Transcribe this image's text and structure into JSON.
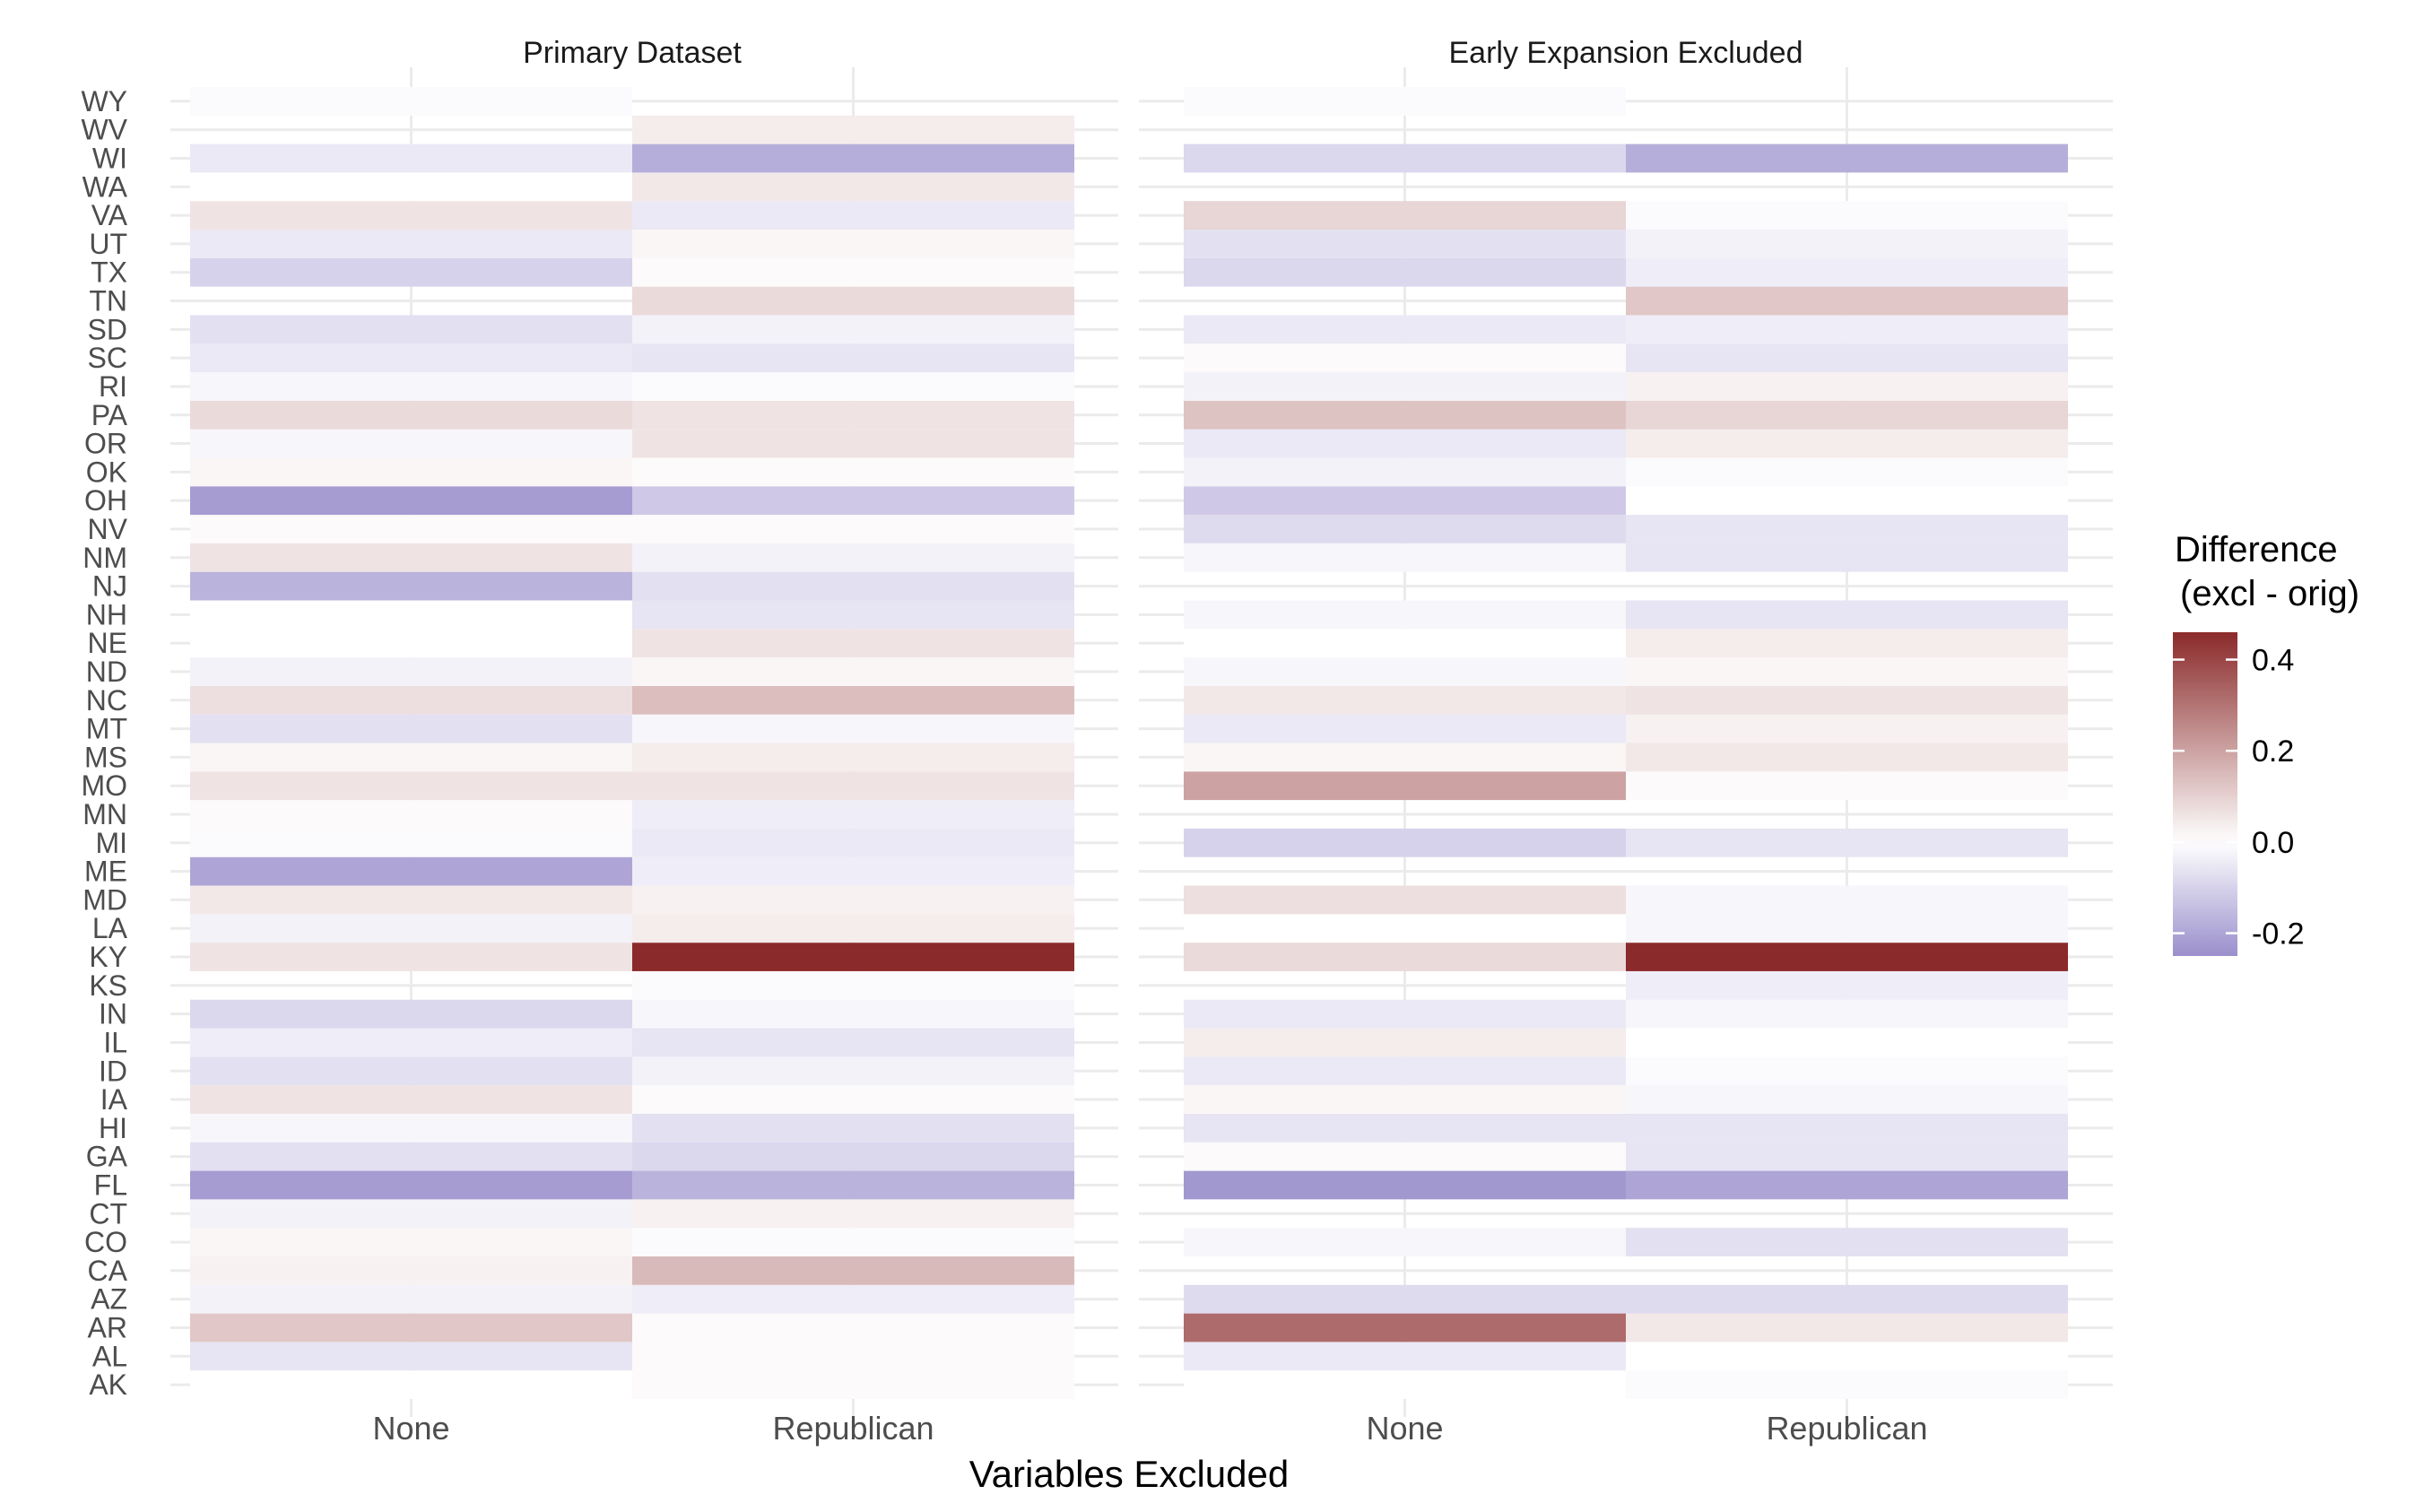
{
  "chart_data": {
    "type": "heatmap",
    "xlabel": "Variables Excluded",
    "ylabel": "",
    "states": [
      "AK",
      "AL",
      "AR",
      "AZ",
      "CA",
      "CO",
      "CT",
      "FL",
      "GA",
      "HI",
      "IA",
      "ID",
      "IL",
      "IN",
      "KS",
      "KY",
      "LA",
      "MD",
      "ME",
      "MI",
      "MN",
      "MO",
      "MS",
      "MT",
      "NC",
      "ND",
      "NE",
      "NH",
      "NJ",
      "NM",
      "NV",
      "OH",
      "OK",
      "OR",
      "PA",
      "RI",
      "SC",
      "SD",
      "TN",
      "TX",
      "UT",
      "VA",
      "WA",
      "WI",
      "WV",
      "WY"
    ],
    "categories": [
      "None",
      "Republican"
    ],
    "legend": {
      "title_line1": "Difference",
      "title_line2": "(excl - orig)",
      "range": [
        -0.25,
        0.46
      ],
      "ticks": [
        {
          "value": 0.4,
          "label": "0.4"
        },
        {
          "value": 0.2,
          "label": "0.2"
        },
        {
          "value": 0.0,
          "label": "0.0"
        },
        {
          "value": -0.2,
          "label": "-0.2"
        }
      ],
      "low_color": "#9A8FCC",
      "mid_color": "#FFFFFF",
      "high_color": "#8B2A2A"
    },
    "panels": [
      {
        "title": "Primary Dataset",
        "None": {
          "AK": 0.0,
          "AL": -0.06,
          "AR": 0.12,
          "AZ": -0.03,
          "CA": 0.03,
          "CO": 0.02,
          "CT": -0.03,
          "FL": -0.22,
          "GA": -0.07,
          "HI": -0.02,
          "IA": 0.06,
          "ID": -0.07,
          "IL": -0.04,
          "IN": -0.09,
          "KS": null,
          "KY": 0.06,
          "LA": -0.03,
          "MD": 0.05,
          "ME": -0.2,
          "MI": -0.01,
          "MN": 0.01,
          "MO": 0.06,
          "MS": 0.02,
          "MT": -0.07,
          "NC": 0.07,
          "ND": -0.03,
          "NE": 0.0,
          "NH": 0.0,
          "NJ": -0.17,
          "NM": 0.06,
          "NV": 0.01,
          "OH": -0.22,
          "OK": 0.02,
          "OR": -0.02,
          "PA": 0.08,
          "RI": -0.02,
          "SC": -0.05,
          "SD": -0.07,
          "TN": null,
          "TX": -0.1,
          "UT": -0.05,
          "VA": 0.06,
          "WA": 0.0,
          "WI": -0.05,
          "WV": null,
          "WY": -0.01
        },
        "Republican": {
          "AK": 0.01,
          "AL": 0.01,
          "AR": 0.01,
          "AZ": -0.04,
          "CA": 0.15,
          "CO": -0.01,
          "CT": 0.03,
          "FL": -0.17,
          "GA": -0.09,
          "HI": -0.07,
          "IA": 0.01,
          "ID": -0.03,
          "IL": -0.06,
          "IN": -0.02,
          "KS": -0.01,
          "KY": 0.46,
          "LA": 0.04,
          "MD": 0.03,
          "ME": -0.04,
          "MI": -0.05,
          "MN": -0.04,
          "MO": 0.06,
          "MS": 0.04,
          "MT": -0.02,
          "NC": 0.14,
          "ND": 0.02,
          "NE": 0.06,
          "NH": -0.06,
          "NJ": -0.07,
          "NM": -0.03,
          "NV": 0.01,
          "OH": -0.12,
          "OK": 0.01,
          "OR": 0.06,
          "PA": 0.06,
          "RI": -0.01,
          "SC": -0.06,
          "SD": -0.03,
          "TN": 0.08,
          "TX": 0.01,
          "UT": 0.02,
          "VA": -0.05,
          "WA": 0.05,
          "WI": -0.18,
          "WV": 0.04,
          "WY": null
        }
      },
      {
        "title": "Early Expansion Excluded",
        "None": {
          "AK": 0.0,
          "AL": -0.05,
          "AR": 0.32,
          "AZ": -0.08,
          "CA": null,
          "CO": -0.02,
          "CT": null,
          "FL": -0.23,
          "GA": 0.01,
          "HI": -0.06,
          "IA": 0.02,
          "ID": -0.05,
          "IL": 0.04,
          "IN": -0.05,
          "KS": null,
          "KY": 0.08,
          "LA": 0.0,
          "MD": 0.07,
          "ME": null,
          "MI": -0.1,
          "MN": null,
          "MO": 0.2,
          "MS": 0.02,
          "MT": -0.05,
          "NC": 0.05,
          "ND": -0.02,
          "NE": 0.0,
          "NH": -0.02,
          "NJ": null,
          "NM": -0.02,
          "NV": -0.08,
          "OH": -0.12,
          "OK": -0.03,
          "OR": -0.05,
          "PA": 0.13,
          "RI": -0.03,
          "SC": 0.01,
          "SD": -0.05,
          "TN": null,
          "TX": -0.09,
          "UT": -0.07,
          "VA": 0.09,
          "WA": null,
          "WI": -0.09,
          "WV": null,
          "WY": -0.01
        },
        "Republican": {
          "AK": -0.01,
          "AL": 0.0,
          "AR": 0.05,
          "AZ": -0.08,
          "CA": null,
          "CO": -0.07,
          "CT": null,
          "FL": -0.2,
          "GA": -0.06,
          "HI": -0.06,
          "IA": -0.02,
          "ID": -0.01,
          "IL": 0.0,
          "IN": -0.02,
          "KS": -0.04,
          "KY": 0.46,
          "LA": -0.02,
          "MD": -0.02,
          "ME": null,
          "MI": -0.06,
          "MN": null,
          "MO": 0.01,
          "MS": 0.05,
          "MT": 0.03,
          "NC": 0.06,
          "ND": 0.02,
          "NE": 0.04,
          "NH": -0.06,
          "NJ": null,
          "NM": -0.06,
          "NV": -0.06,
          "OH": 0.0,
          "OK": -0.01,
          "OR": 0.04,
          "PA": 0.09,
          "RI": 0.03,
          "SC": -0.06,
          "SD": -0.04,
          "TN": 0.12,
          "TX": -0.04,
          "UT": -0.03,
          "VA": -0.01,
          "WA": null,
          "WI": -0.18,
          "WV": null,
          "WY": null
        }
      }
    ]
  }
}
